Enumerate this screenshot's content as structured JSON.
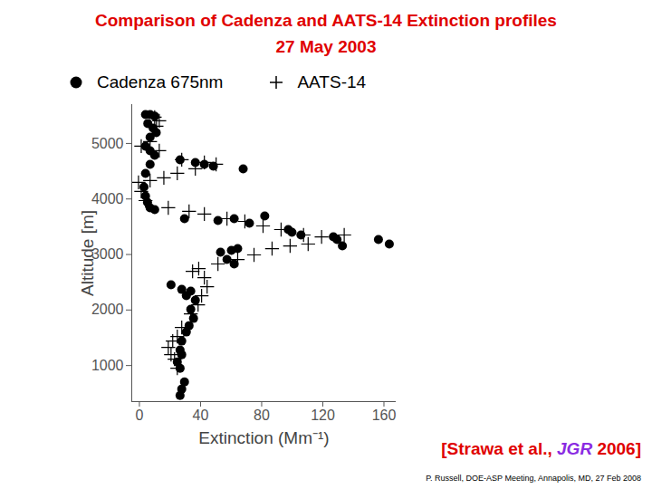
{
  "chart_data": {
    "type": "scatter",
    "title": [
      "Comparison of Cadenza and AATS-14 Extinction profiles",
      "27 May 2003"
    ],
    "xlabel": "Extinction (Mm⁻¹)",
    "ylabel": "Altitude [m]",
    "xlim": [
      -5,
      168
    ],
    "ylim": [
      350,
      5700
    ],
    "xticks": [
      0,
      40,
      80,
      120,
      160
    ],
    "yticks": [
      1000,
      2000,
      3000,
      4000,
      5000
    ],
    "grid": false,
    "legend": "top",
    "source_note": [
      "[Strawa et al., ",
      "JGR",
      " 2006]"
    ],
    "credit": "P. Russell, DOE-ASP Meeting, Annapolis, MD, 27 Feb 2008",
    "series": [
      {
        "name": "Cadenza 675nm",
        "color": "#000000",
        "marker": "circle",
        "x": [
          4,
          7,
          10,
          5.5,
          9,
          11,
          7,
          4,
          7,
          10,
          7,
          4,
          26.6,
          36.6,
          42.5,
          48.4,
          67.9,
          3,
          4,
          5.3,
          7,
          10,
          29.5,
          51.4,
          62,
          72,
          82,
          97.4,
          99.8,
          105.7,
          126.9,
          129.3,
          132.8,
          156.4,
          163.5,
          53.1,
          60.2,
          64.3,
          57.3,
          62,
          20.7,
          27.7,
          33.6,
          30.7,
          36.6,
          33.6,
          35.4,
          32.5,
          30.7,
          27.7,
          26.6,
          27.7,
          24.8,
          26.6,
          29.5,
          27.7,
          26.6
        ],
        "values": [
          5522,
          5522,
          5490,
          5359,
          5277,
          5196,
          5114,
          4951,
          4869,
          4788,
          4624,
          4461,
          4706,
          4657,
          4624,
          4592,
          4543,
          4216,
          4053,
          3939,
          3841,
          3808,
          3645,
          3612,
          3645,
          3563,
          3694,
          3449,
          3400,
          3351,
          3318,
          3269,
          3155,
          3269,
          3188,
          3041,
          3073,
          3106,
          2910,
          2829,
          2453,
          2371,
          2339,
          2257,
          2176,
          2012,
          1849,
          1718,
          1604,
          1441,
          1278,
          1196,
          1065,
          951,
          706,
          576,
          461
        ]
      },
      {
        "name": "AATS-14",
        "color": "#000000",
        "marker": "plus",
        "x": [
          10,
          13,
          11.2,
          7,
          1.2,
          13,
          27.7,
          42.5,
          50.2,
          36.6,
          24.8,
          16,
          7,
          -0.6,
          1.2,
          4,
          18.9,
          32.5,
          42.5,
          57.3,
          69,
          80.9,
          92.7,
          107.4,
          119.2,
          134,
          110.4,
          98.6,
          86.8,
          75,
          64.3,
          51.4,
          38.8,
          34.8,
          42.5,
          44.3,
          40.7,
          38.4,
          33.6,
          27.7,
          24.8,
          21.8,
          18.9,
          20.7,
          23,
          24.8
        ],
        "values": [
          5473,
          5408,
          5310,
          5033,
          4951,
          4869,
          4706,
          4657,
          4624,
          4543,
          4461,
          4380,
          4331,
          4298,
          4135,
          3971,
          3841,
          3776,
          3727,
          3645,
          3596,
          3514,
          3449,
          3351,
          3318,
          3351,
          3188,
          3155,
          3106,
          2992,
          2910,
          2829,
          2747,
          2698,
          2584,
          2420,
          2257,
          2094,
          1931,
          1686,
          1522,
          1441,
          1327,
          1196,
          1114,
          951
        ]
      }
    ]
  }
}
